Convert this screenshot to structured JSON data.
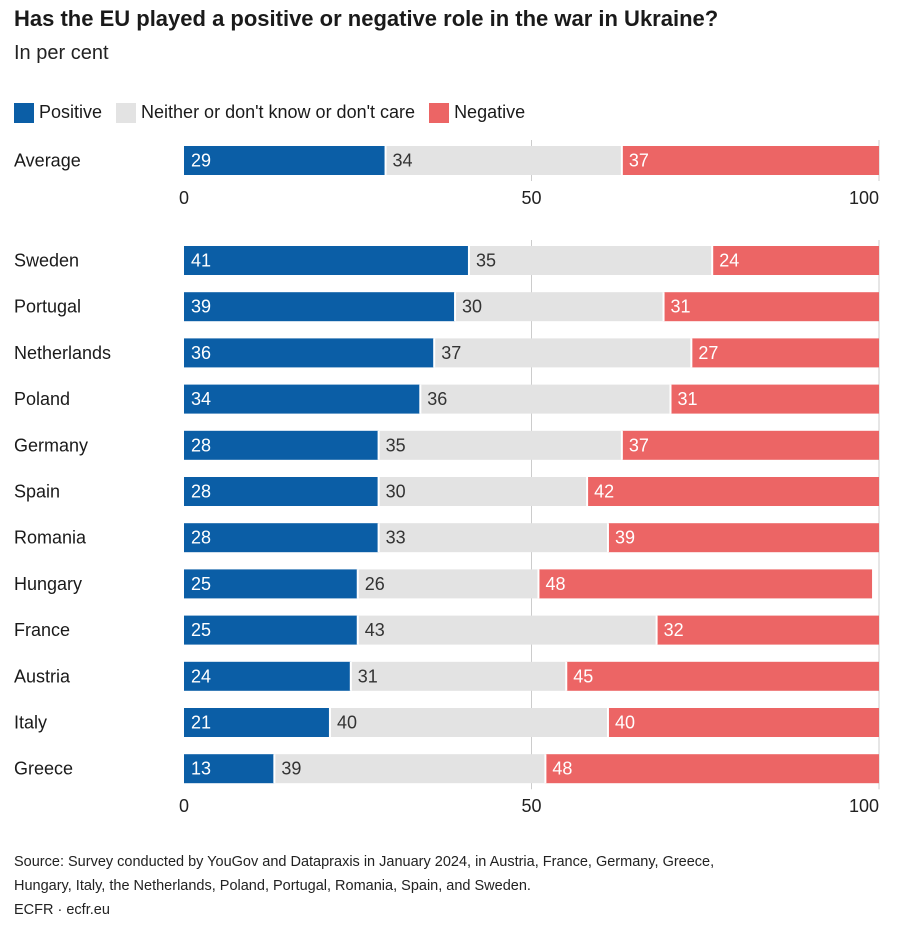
{
  "title": "Has the EU played a positive or negative role in the war in Ukraine?",
  "subtitle": "In per cent",
  "colors": {
    "positive": "#0b5ea6",
    "neither": "#e3e3e3",
    "negative": "#ec6565",
    "grid": "#cccccc"
  },
  "source": {
    "line1": "Source: Survey conducted by YouGov and Datapraxis in January 2024, in Austria, France, Germany, Greece,",
    "line2": "Hungary, Italy, the Netherlands, Poland, Portugal, Romania, Spain, and Sweden.",
    "line3": "ECFR · ecfr.eu"
  },
  "chart_data": {
    "type": "bar",
    "orientation": "horizontal-stacked",
    "title": "Has the EU played a positive or negative role in the war in Ukraine?",
    "subtitle": "In per cent",
    "xlim": [
      0,
      100
    ],
    "x_ticks": [
      0,
      50,
      100
    ],
    "grid": true,
    "legend_position": "top-left",
    "series": [
      {
        "name": "Positive",
        "color": "#0b5ea6"
      },
      {
        "name": "Neither or don't know or don't care",
        "color": "#e3e3e3"
      },
      {
        "name": "Negative",
        "color": "#ec6565"
      }
    ],
    "average": {
      "label": "Average",
      "values": [
        29,
        34,
        37
      ]
    },
    "countries": [
      {
        "label": "Sweden",
        "values": [
          41,
          35,
          24
        ]
      },
      {
        "label": "Portugal",
        "values": [
          39,
          30,
          31
        ]
      },
      {
        "label": "Netherlands",
        "values": [
          36,
          37,
          27
        ]
      },
      {
        "label": "Poland",
        "values": [
          34,
          36,
          31
        ]
      },
      {
        "label": "Germany",
        "values": [
          28,
          35,
          37
        ]
      },
      {
        "label": "Spain",
        "values": [
          28,
          30,
          42
        ]
      },
      {
        "label": "Romania",
        "values": [
          28,
          33,
          39
        ]
      },
      {
        "label": "Hungary",
        "values": [
          25,
          26,
          48
        ]
      },
      {
        "label": "France",
        "values": [
          25,
          43,
          32
        ]
      },
      {
        "label": "Austria",
        "values": [
          24,
          31,
          45
        ]
      },
      {
        "label": "Italy",
        "values": [
          21,
          40,
          40
        ]
      },
      {
        "label": "Greece",
        "values": [
          13,
          39,
          48
        ]
      }
    ]
  }
}
